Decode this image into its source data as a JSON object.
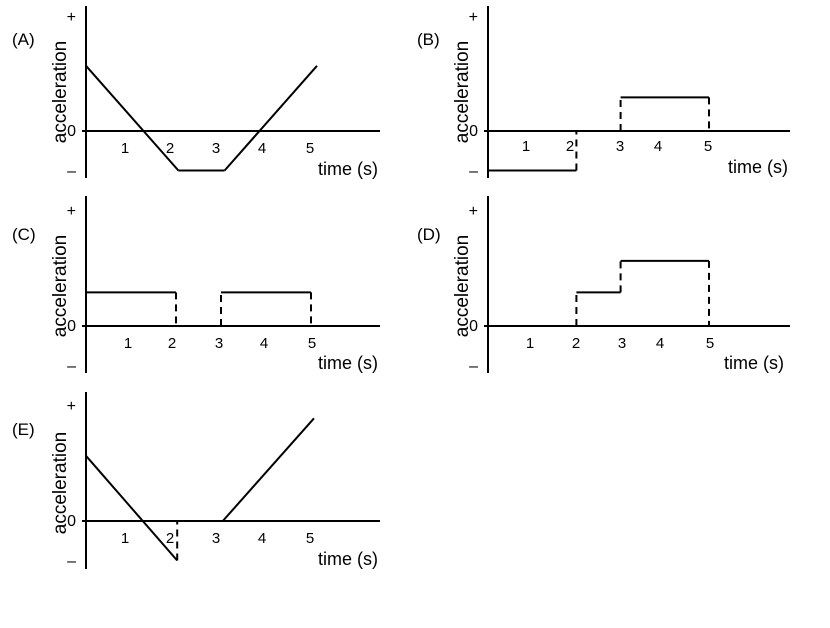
{
  "chart_data": [
    {
      "panel": "(A)",
      "type": "line",
      "ylabel": "acceleration",
      "xlabel": "time (s)",
      "y_tick_labels": [
        "+",
        "0",
        "–"
      ],
      "x_tick_labels": [
        "1",
        "2",
        "3",
        "4",
        "5"
      ],
      "xlim": [
        0,
        6
      ],
      "ylim": [
        -1,
        2.5
      ],
      "segments": [
        {
          "style": "solid",
          "points": [
            [
              0,
              1.65
            ],
            [
              2,
              -1
            ]
          ]
        },
        {
          "style": "solid",
          "points": [
            [
              2,
              -1
            ],
            [
              3,
              -1
            ]
          ]
        },
        {
          "style": "solid",
          "points": [
            [
              3,
              -1
            ],
            [
              5,
              1.65
            ]
          ]
        }
      ]
    },
    {
      "panel": "(B)",
      "type": "line",
      "ylabel": "acceleration",
      "xlabel": "time (s)",
      "y_tick_labels": [
        "+",
        "0",
        "–"
      ],
      "x_tick_labels": [
        "1",
        "2",
        "3",
        "4",
        "5"
      ],
      "xlim": [
        0,
        6
      ],
      "ylim": [
        -1,
        2.5
      ],
      "segments": [
        {
          "style": "solid",
          "points": [
            [
              0,
              -1
            ],
            [
              2,
              -1
            ]
          ]
        },
        {
          "style": "dashed",
          "points": [
            [
              2,
              -1
            ],
            [
              2,
              0
            ]
          ]
        },
        {
          "style": "solid",
          "points": [
            [
              2,
              0
            ],
            [
              3,
              0
            ]
          ]
        },
        {
          "style": "dashed",
          "points": [
            [
              3,
              0
            ],
            [
              3,
              0.85
            ]
          ]
        },
        {
          "style": "solid",
          "points": [
            [
              3,
              0.85
            ],
            [
              5,
              0.85
            ]
          ]
        },
        {
          "style": "dashed",
          "points": [
            [
              5,
              0.85
            ],
            [
              5,
              0
            ]
          ]
        }
      ]
    },
    {
      "panel": "(C)",
      "type": "line",
      "ylabel": "acceleration",
      "xlabel": "time (s)",
      "y_tick_labels": [
        "+",
        "0",
        "–"
      ],
      "x_tick_labels": [
        "1",
        "2",
        "3",
        "4",
        "5"
      ],
      "xlim": [
        0,
        6
      ],
      "ylim": [
        -1,
        2.5
      ],
      "segments": [
        {
          "style": "solid",
          "points": [
            [
              0,
              0.85
            ],
            [
              2,
              0.85
            ]
          ]
        },
        {
          "style": "dashed",
          "points": [
            [
              2,
              0.85
            ],
            [
              2,
              0
            ]
          ]
        },
        {
          "style": "solid",
          "points": [
            [
              2,
              0
            ],
            [
              3,
              0
            ]
          ]
        },
        {
          "style": "dashed",
          "points": [
            [
              3,
              0
            ],
            [
              3,
              0.85
            ]
          ]
        },
        {
          "style": "solid",
          "points": [
            [
              3,
              0.85
            ],
            [
              5,
              0.85
            ]
          ]
        },
        {
          "style": "dashed",
          "points": [
            [
              5,
              0.85
            ],
            [
              5,
              0
            ]
          ]
        }
      ]
    },
    {
      "panel": "(D)",
      "type": "line",
      "ylabel": "acceleration",
      "xlabel": "time (s)",
      "y_tick_labels": [
        "+",
        "0",
        "–"
      ],
      "x_tick_labels": [
        "1",
        "2",
        "3",
        "4",
        "5"
      ],
      "xlim": [
        0,
        6
      ],
      "ylim": [
        -1,
        2.5
      ],
      "segments": [
        {
          "style": "solid",
          "points": [
            [
              0,
              0
            ],
            [
              2,
              0
            ]
          ]
        },
        {
          "style": "dashed",
          "points": [
            [
              2,
              0
            ],
            [
              2,
              0.85
            ]
          ]
        },
        {
          "style": "solid",
          "points": [
            [
              2,
              0.85
            ],
            [
              3,
              0.85
            ]
          ]
        },
        {
          "style": "dashed",
          "points": [
            [
              3,
              0.85
            ],
            [
              3,
              1.65
            ]
          ]
        },
        {
          "style": "solid",
          "points": [
            [
              3,
              1.65
            ],
            [
              5,
              1.65
            ]
          ]
        },
        {
          "style": "dashed",
          "points": [
            [
              5,
              1.65
            ],
            [
              5,
              0
            ]
          ]
        }
      ]
    },
    {
      "panel": "(E)",
      "type": "line",
      "ylabel": "acceleration",
      "xlabel": "time (s)",
      "y_tick_labels": [
        "+",
        "0",
        "–"
      ],
      "x_tick_labels": [
        "1",
        "2",
        "3",
        "4",
        "5"
      ],
      "xlim": [
        0,
        6
      ],
      "ylim": [
        -1,
        2.6
      ],
      "segments": [
        {
          "style": "solid",
          "points": [
            [
              0,
              1.65
            ],
            [
              2,
              -1
            ]
          ]
        },
        {
          "style": "dashed",
          "points": [
            [
              2,
              -1
            ],
            [
              2,
              0
            ]
          ]
        },
        {
          "style": "solid",
          "points": [
            [
              2,
              0
            ],
            [
              3,
              0
            ]
          ]
        },
        {
          "style": "solid",
          "points": [
            [
              3,
              0
            ],
            [
              5,
              2.6
            ]
          ]
        }
      ]
    }
  ]
}
